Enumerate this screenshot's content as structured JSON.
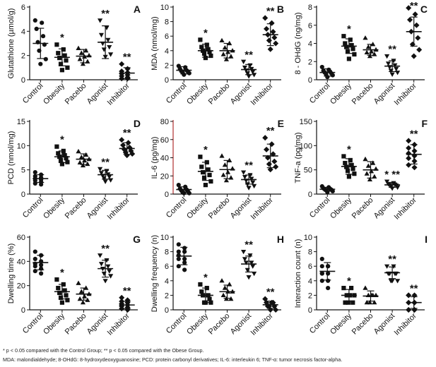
{
  "groups": [
    "Control",
    "Obesity",
    "Pacebo",
    "Agonist",
    "Inhibitor"
  ],
  "marker_shapes": [
    "circle",
    "square",
    "triangle-up",
    "triangle-down",
    "diamond"
  ],
  "colors": {
    "ink": "#111111",
    "axis": "#111111",
    "panel_label": "#111111",
    "special_axis": "#b03030"
  },
  "chart_data": [
    {
      "type": "scatter",
      "panel": "A",
      "ylabel": "Glutathione (µmol/g)",
      "ylim": [
        0,
        6
      ],
      "yticks": [
        0,
        2,
        4,
        6
      ],
      "means": [
        3.0,
        1.85,
        1.95,
        3.1,
        0.55
      ],
      "sds": [
        1.25,
        0.7,
        0.55,
        1.35,
        0.45
      ],
      "significance": [
        "",
        "*",
        "",
        "**",
        "**"
      ],
      "points": [
        [
          4.9,
          4.7,
          4.2,
          3.6,
          3.1,
          2.9,
          2.4,
          1.7,
          1.3
        ],
        [
          2.9,
          2.5,
          2.2,
          2.0,
          1.8,
          1.6,
          1.3,
          1.0,
          0.8
        ],
        [
          2.6,
          2.4,
          2.2,
          2.0,
          1.9,
          1.7,
          1.5,
          1.3
        ],
        [
          4.9,
          4.3,
          3.7,
          3.3,
          3.0,
          2.7,
          2.5,
          2.1,
          1.9
        ],
        [
          1.3,
          0.9,
          0.7,
          0.6,
          0.5,
          0.4,
          0.3,
          0.2,
          0.1,
          0.1
        ]
      ]
    },
    {
      "type": "scatter",
      "panel": "B",
      "ylabel": "MDA (nmol/mg)",
      "ylim": [
        0,
        10
      ],
      "yticks": [
        0,
        2,
        4,
        6,
        8,
        10
      ],
      "means": [
        1.3,
        4.0,
        4.0,
        1.4,
        6.2
      ],
      "sds": [
        0.5,
        0.9,
        1.0,
        0.7,
        1.5
      ],
      "significance": [
        "",
        "*",
        "",
        "**",
        "**"
      ],
      "points": [
        [
          1.9,
          1.7,
          1.5,
          1.3,
          1.2,
          1.1,
          1.0,
          0.9,
          0.7
        ],
        [
          5.5,
          4.8,
          4.5,
          4.2,
          4.0,
          3.8,
          3.6,
          3.3,
          3.0
        ],
        [
          5.4,
          5.0,
          4.4,
          4.0,
          3.8,
          3.5,
          3.2,
          2.8
        ],
        [
          2.5,
          2.0,
          1.7,
          1.5,
          1.3,
          1.1,
          0.9,
          0.7,
          0.5
        ],
        [
          8.5,
          7.8,
          7.0,
          6.6,
          6.2,
          5.8,
          5.4,
          5.0,
          4.2
        ]
      ]
    },
    {
      "type": "scatter",
      "panel": "C",
      "ylabel": "8 - OHdG (ng/mg)",
      "ylim": [
        0,
        8
      ],
      "yticks": [
        0,
        2,
        4,
        6,
        8
      ],
      "means": [
        0.8,
        3.7,
        3.3,
        1.5,
        5.3
      ],
      "sds": [
        0.4,
        0.8,
        0.6,
        0.6,
        1.6
      ],
      "significance": [
        "",
        "*",
        "",
        "**",
        "**"
      ],
      "points": [
        [
          1.4,
          1.1,
          1.0,
          0.9,
          0.8,
          0.7,
          0.6,
          0.5,
          0.3
        ],
        [
          4.8,
          4.4,
          4.0,
          3.8,
          3.6,
          3.4,
          3.1,
          2.8,
          2.3
        ],
        [
          4.6,
          3.9,
          3.6,
          3.3,
          3.1,
          3.0,
          2.8,
          2.6
        ],
        [
          2.6,
          2.1,
          1.8,
          1.6,
          1.4,
          1.2,
          1.0,
          0.8,
          0.6
        ],
        [
          7.9,
          7.2,
          6.6,
          6.0,
          5.3,
          4.6,
          3.9,
          3.3,
          2.6
        ]
      ]
    },
    {
      "type": "scatter",
      "panel": "D",
      "ylabel": "PCD (nmol/mg)",
      "ylim": [
        0,
        15
      ],
      "yticks": [
        0,
        5,
        10,
        15
      ],
      "means": [
        3.2,
        7.7,
        7.2,
        4.0,
        9.4
      ],
      "sds": [
        0.8,
        1.2,
        1.1,
        0.9,
        1.2
      ],
      "significance": [
        "",
        "*",
        "",
        "**",
        "**"
      ],
      "points": [
        [
          4.5,
          4.0,
          3.7,
          3.4,
          3.2,
          3.0,
          2.8,
          2.5,
          2.2,
          2.0
        ],
        [
          9.8,
          8.9,
          8.4,
          8.0,
          7.7,
          7.4,
          7.0,
          6.6,
          6.2
        ],
        [
          8.8,
          8.1,
          7.6,
          7.2,
          6.9,
          6.5,
          6.2,
          5.9
        ],
        [
          5.2,
          4.8,
          4.4,
          4.1,
          3.8,
          3.6,
          3.3,
          2.9,
          2.6
        ],
        [
          11.2,
          10.6,
          10.1,
          9.6,
          9.2,
          8.9,
          8.6,
          8.3,
          8.0
        ]
      ]
    },
    {
      "type": "scatter",
      "panel": "E",
      "ylabel": "IL-6 (pg/mg)",
      "ylim": [
        0,
        80
      ],
      "yticks": [
        0,
        20,
        40,
        60,
        80
      ],
      "means": [
        5.0,
        25.0,
        27.0,
        16.0,
        42.0
      ],
      "sds": [
        3.0,
        10.0,
        10.0,
        5.0,
        13.0
      ],
      "significance": [
        "",
        "*",
        "",
        "**",
        "**"
      ],
      "points": [
        [
          10,
          8,
          6,
          5,
          4,
          3,
          2,
          1,
          1
        ],
        [
          41,
          35,
          30,
          27,
          24,
          21,
          18,
          14,
          10
        ],
        [
          42,
          37,
          32,
          28,
          24,
          21,
          18,
          15
        ],
        [
          24,
          21,
          19,
          17,
          15,
          13,
          11,
          9,
          7
        ],
        [
          62,
          55,
          49,
          44,
          40,
          36,
          33,
          30,
          27
        ]
      ]
    },
    {
      "type": "scatter",
      "panel": "F",
      "ylabel": "TNF-a (pg/mg)",
      "ylim": [
        0,
        150
      ],
      "yticks": [
        0,
        50,
        100,
        150
      ],
      "means": [
        10,
        57,
        50,
        19,
        82
      ],
      "sds": [
        4,
        16,
        17,
        5,
        20
      ],
      "significance": [
        "",
        "*",
        "",
        "* **",
        "**"
      ],
      "points": [
        [
          16,
          14,
          12,
          11,
          10,
          9,
          8,
          6,
          4
        ],
        [
          78,
          70,
          64,
          60,
          56,
          52,
          48,
          42,
          36
        ],
        [
          72,
          64,
          58,
          52,
          47,
          42,
          36,
          30
        ],
        [
          26,
          23,
          21,
          20,
          19,
          18,
          16,
          14,
          12
        ],
        [
          110,
          102,
          95,
          89,
          84,
          79,
          74,
          68,
          60,
          55
        ]
      ]
    },
    {
      "type": "scatter",
      "panel": "G",
      "ylabel": "Dwelling time (%)",
      "ylim": [
        0,
        60
      ],
      "yticks": [
        0,
        20,
        40,
        60
      ],
      "means": [
        39,
        15,
        13,
        34,
        4
      ],
      "sds": [
        6,
        6,
        5,
        7,
        3
      ],
      "significance": [
        "",
        "*",
        "",
        "**",
        "**"
      ],
      "points": [
        [
          48,
          45,
          42,
          40,
          38,
          37,
          36,
          34,
          32,
          30
        ],
        [
          25,
          21,
          18,
          16,
          14,
          12,
          10,
          8,
          6
        ],
        [
          22,
          18,
          15,
          13,
          11,
          9,
          8,
          6
        ],
        [
          45,
          41,
          38,
          36,
          34,
          32,
          30,
          28,
          24
        ],
        [
          10,
          8,
          7,
          6,
          5,
          4,
          3,
          2,
          1,
          0
        ]
      ]
    },
    {
      "type": "scatter",
      "panel": "H",
      "ylabel": "Dwelling frequency (n)",
      "ylim": [
        0,
        10
      ],
      "yticks": [
        0,
        2,
        4,
        6,
        8,
        10
      ],
      "means": [
        7.4,
        2.0,
        2.5,
        6.3,
        0.7
      ],
      "sds": [
        1.2,
        1.0,
        0.9,
        1.1,
        0.5
      ],
      "significance": [
        "",
        "*",
        "",
        "**",
        "**"
      ],
      "points": [
        [
          9.0,
          8.5,
          8.0,
          8.0,
          7.5,
          7.0,
          7.0,
          6.5,
          6.0,
          5.5
        ],
        [
          3.5,
          3.0,
          2.5,
          2.0,
          2.0,
          1.5,
          1.0,
          1.0,
          1.0
        ],
        [
          4.0,
          3.5,
          3.0,
          2.5,
          2.5,
          2.0,
          1.5,
          1.5
        ],
        [
          8.0,
          7.5,
          7.0,
          6.5,
          6.5,
          6.0,
          5.5,
          5.0,
          4.5
        ],
        [
          1.5,
          1.0,
          1.0,
          1.0,
          0.5,
          0.5,
          0.5,
          0.0,
          0.0
        ]
      ]
    },
    {
      "type": "scatter",
      "panel": "I",
      "ylabel": "Interaction count (n)",
      "ylim": [
        0,
        10
      ],
      "yticks": [
        0,
        2,
        4,
        6,
        8,
        10
      ],
      "means": [
        5.3,
        2.0,
        1.9,
        5.1,
        1.0
      ],
      "sds": [
        1.2,
        0.8,
        0.7,
        0.8,
        0.8
      ],
      "significance": [
        "",
        "*",
        "",
        "**",
        "**"
      ],
      "points": [
        [
          7,
          6,
          6,
          6,
          5,
          5,
          5,
          4,
          4,
          3
        ],
        [
          3,
          3,
          2,
          2,
          2,
          1,
          1,
          1
        ],
        [
          3,
          2,
          2,
          2,
          2,
          1,
          1,
          1
        ],
        [
          6,
          6,
          5,
          5,
          5,
          5,
          4,
          4,
          4
        ],
        [
          2,
          2,
          2,
          1,
          1,
          1,
          0,
          0,
          0,
          0
        ]
      ]
    }
  ],
  "footnote": {
    "line1": "* p < 0.05 compared with the Control Group; ** p < 0.05 compared with the Obese Group.",
    "line2": "MDA: malondialdehyde; 8-OHdG: 8-hydroxydeoxyguanosine; PCD: protein carbonyl derivatives; IL-6: interleukin 6; TNF-α: tumor necrosis factor-alpha."
  }
}
